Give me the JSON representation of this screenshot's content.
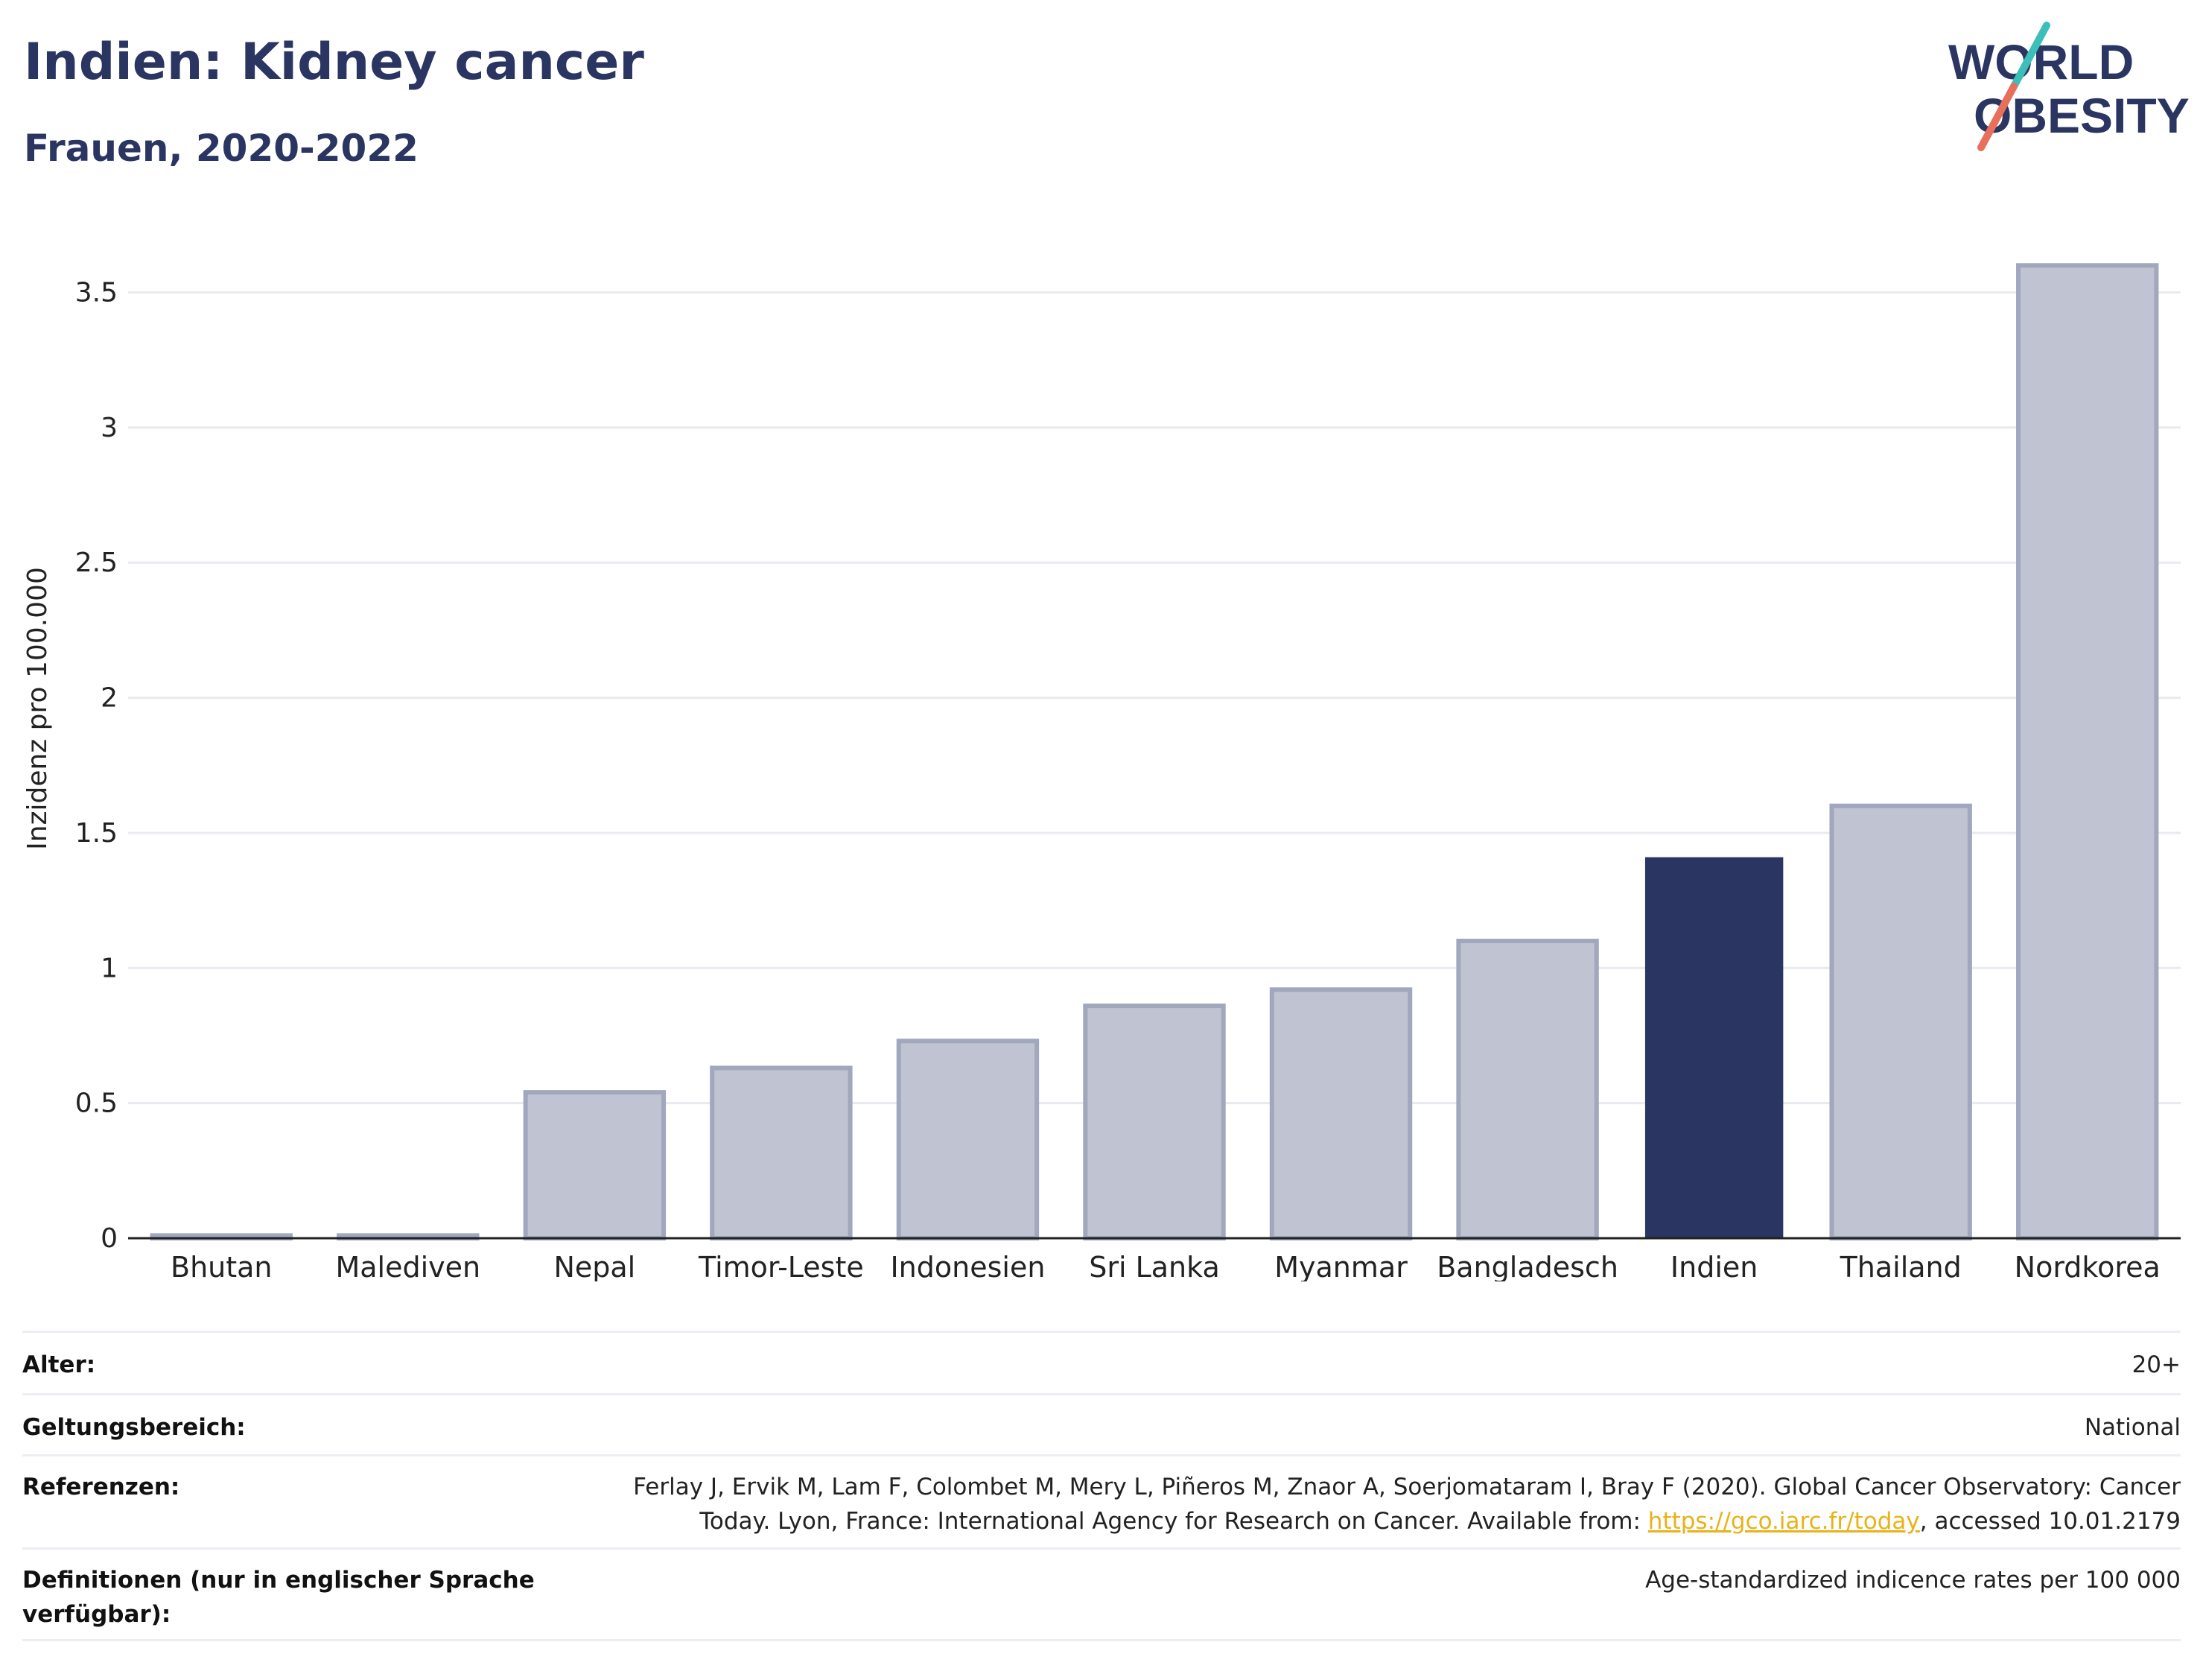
{
  "header": {
    "title": "Indien: Kidney cancer",
    "subtitle": "Frauen, 2020-2022"
  },
  "logo": {
    "line1": "WORLD",
    "line2": "OBESITY",
    "slash_colors": [
      "#3bbfb8",
      "#e8705a"
    ],
    "text_color": "#2a3561"
  },
  "chart_data": {
    "type": "bar",
    "ylabel": "Inzidenz pro 100.000",
    "xlabel": "",
    "ylim": [
      0,
      3.7
    ],
    "yticks": [
      0,
      0.5,
      1,
      1.5,
      2,
      2.5,
      3,
      3.5
    ],
    "ytick_labels": [
      "0",
      "0.5",
      "1",
      "1.5",
      "2",
      "2.5",
      "3",
      "3.5"
    ],
    "categories": [
      "Bhutan",
      "Malediven",
      "Nepal",
      "Timor-Leste",
      "Indonesien",
      "Sri Lanka",
      "Myanmar",
      "Bangladesch",
      "Indien",
      "Thailand",
      "Nordkorea"
    ],
    "values": [
      0.01,
      0.01,
      0.54,
      0.63,
      0.73,
      0.86,
      0.92,
      1.1,
      1.41,
      1.6,
      3.6
    ],
    "highlight": "Indien",
    "grid": true,
    "colors": {
      "bar": "#c0c3d1",
      "bar_edge": "#a1a7bd",
      "highlight": "#2a3561",
      "grid": "#e8eaf0",
      "axis": "#222222"
    }
  },
  "metadata": [
    {
      "label": "Alter:",
      "value_lines": [
        "20+"
      ]
    },
    {
      "label": "Geltungsbereich:",
      "value_lines": [
        "National"
      ]
    },
    {
      "label": "Referenzen:",
      "ref_line1": "Ferlay J, Ervik M, Lam F, Colombet M, Mery L, Piñeros M, Znaor A, Soerjomataram I, Bray F (2020). Global Cancer Observatory: Cancer",
      "ref_line2_pre": "Today. Lyon, France: International Agency for Research on Cancer. Available from: ",
      "ref_link": "https://gco.iarc.fr/today",
      "ref_line2_post": ", accessed 10.01.2179"
    },
    {
      "label_lines": [
        "Definitionen (nur in englischer Sprache",
        "verfügbar):"
      ],
      "value_lines": [
        "Age-standardized indicence rates per 100 000"
      ]
    }
  ]
}
